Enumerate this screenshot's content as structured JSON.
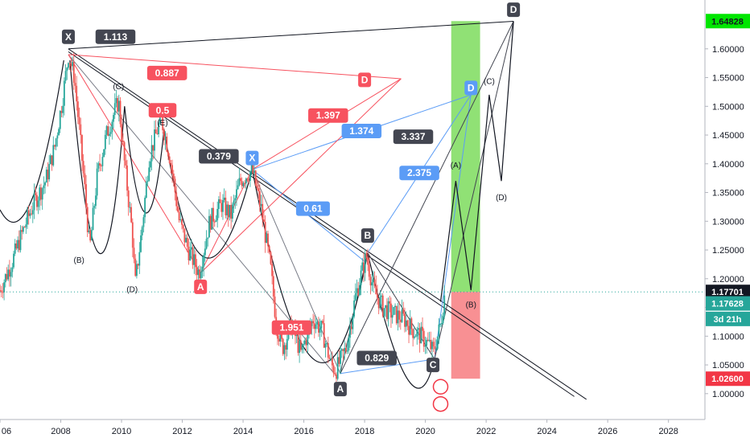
{
  "chart_data": {
    "type": "candlestick",
    "instrument_timeframe": "3d",
    "x_ticks": [
      "06",
      "2008",
      "2010",
      "2012",
      "2014",
      "2016",
      "2018",
      "2020",
      "2022",
      "2024",
      "2026",
      "2028"
    ],
    "y_ticks": [
      "1.00000",
      "1.05000",
      "1.10000",
      "1.15000",
      "1.20000",
      "1.25000",
      "1.30000",
      "1.35000",
      "1.40000",
      "1.45000",
      "1.50000",
      "1.55000",
      "1.60000"
    ],
    "ylim": [
      0.955,
      1.685
    ],
    "xlim": [
      2006.0,
      2029.2
    ],
    "price_tags": [
      {
        "value": "1.64828",
        "price": 1.64828,
        "bg": "#00e600",
        "fg": "#131722"
      },
      {
        "value": "1.17701",
        "price": 1.17701,
        "bg": "#131722",
        "fg": "#ffffff"
      },
      {
        "value": "1.17628",
        "price": 1.157,
        "bg": "#26a69a",
        "fg": "#ffffff"
      },
      {
        "value": "3d 21h",
        "price": 1.13,
        "bg": "#26a69a",
        "fg": "#ffffff"
      },
      {
        "value": "1.02600",
        "price": 1.026,
        "bg": "#f23645",
        "fg": "#ffffff"
      }
    ],
    "current_price": 1.17701,
    "price_path": [
      [
        2006.0,
        1.18
      ],
      [
        2006.4,
        1.23
      ],
      [
        2006.8,
        1.29
      ],
      [
        2007.1,
        1.33
      ],
      [
        2007.5,
        1.37
      ],
      [
        2007.8,
        1.43
      ],
      [
        2008.05,
        1.51
      ],
      [
        2008.25,
        1.59
      ],
      [
        2008.45,
        1.55
      ],
      [
        2008.8,
        1.35
      ],
      [
        2008.95,
        1.25
      ],
      [
        2009.2,
        1.38
      ],
      [
        2009.5,
        1.45
      ],
      [
        2009.9,
        1.51
      ],
      [
        2010.1,
        1.4
      ],
      [
        2010.35,
        1.28
      ],
      [
        2010.45,
        1.19
      ],
      [
        2010.7,
        1.3
      ],
      [
        2010.9,
        1.41
      ],
      [
        2011.3,
        1.48
      ],
      [
        2011.6,
        1.41
      ],
      [
        2011.9,
        1.3
      ],
      [
        2012.2,
        1.25
      ],
      [
        2012.55,
        1.21
      ],
      [
        2012.9,
        1.3
      ],
      [
        2013.3,
        1.33
      ],
      [
        2013.6,
        1.31
      ],
      [
        2013.9,
        1.37
      ],
      [
        2014.3,
        1.39
      ],
      [
        2014.6,
        1.32
      ],
      [
        2014.9,
        1.22
      ],
      [
        2015.1,
        1.12
      ],
      [
        2015.3,
        1.08
      ],
      [
        2015.6,
        1.12
      ],
      [
        2015.9,
        1.07
      ],
      [
        2016.3,
        1.13
      ],
      [
        2016.6,
        1.11
      ],
      [
        2016.9,
        1.05
      ],
      [
        2017.05,
        1.04
      ],
      [
        2017.4,
        1.08
      ],
      [
        2017.7,
        1.17
      ],
      [
        2018.05,
        1.24
      ],
      [
        2018.3,
        1.18
      ],
      [
        2018.6,
        1.15
      ],
      [
        2018.9,
        1.14
      ],
      [
        2019.3,
        1.13
      ],
      [
        2019.6,
        1.11
      ],
      [
        2019.85,
        1.1
      ],
      [
        2020.2,
        1.08
      ],
      [
        2020.25,
        1.07
      ],
      [
        2020.5,
        1.12
      ],
      [
        2020.65,
        1.18
      ]
    ],
    "harmonic_labels": [
      {
        "text": "1.113",
        "x": 2009.8,
        "y": 1.621,
        "color": "#434651"
      },
      {
        "text": "0.887",
        "x": 2011.5,
        "y": 1.558,
        "color": "#f7525f"
      },
      {
        "text": "1.397",
        "x": 2016.8,
        "y": 1.484,
        "color": "#f7525f"
      },
      {
        "text": "1.374",
        "x": 2017.9,
        "y": 1.457,
        "color": "#5b9cf6"
      },
      {
        "text": "0.5",
        "x": 2011.35,
        "y": 1.493,
        "color": "#f7525f"
      },
      {
        "text": "0.379",
        "x": 2013.2,
        "y": 1.413,
        "color": "#434651"
      },
      {
        "text": "3.337",
        "x": 2019.6,
        "y": 1.447,
        "color": "#434651"
      },
      {
        "text": "2.375",
        "x": 2019.8,
        "y": 1.384,
        "color": "#5b9cf6"
      },
      {
        "text": "0.61",
        "x": 2016.3,
        "y": 1.322,
        "color": "#5b9cf6"
      },
      {
        "text": "1.951",
        "x": 2015.6,
        "y": 1.115,
        "color": "#f7525f"
      },
      {
        "text": "0.829",
        "x": 2018.4,
        "y": 1.062,
        "color": "#434651"
      }
    ],
    "point_labels": [
      {
        "text": "X",
        "x": 2008.25,
        "y": 1.621,
        "color": "#434651"
      },
      {
        "text": "X",
        "x": 2014.3,
        "y": 1.41,
        "color": "#5b9cf6"
      },
      {
        "text": "D",
        "x": 2018.0,
        "y": 1.546,
        "color": "#f7525f"
      },
      {
        "text": "D",
        "x": 2021.5,
        "y": 1.532,
        "color": "#5b9cf6"
      },
      {
        "text": "D",
        "x": 2022.9,
        "y": 1.668,
        "color": "#434651"
      },
      {
        "text": "A",
        "x": 2012.6,
        "y": 1.186,
        "color": "#f7525f"
      },
      {
        "text": "B",
        "x": 2018.1,
        "y": 1.275,
        "color": "#434651"
      },
      {
        "text": "A",
        "x": 2017.2,
        "y": 1.008,
        "color": "#434651"
      },
      {
        "text": "C",
        "x": 2020.25,
        "y": 1.05,
        "color": "#434651"
      }
    ],
    "wave_labels": [
      {
        "text": "(C)",
        "x": 2009.9,
        "y": 1.53
      },
      {
        "text": "(E)",
        "x": 2011.35,
        "y": 1.467
      },
      {
        "text": "(B)",
        "x": 2008.6,
        "y": 1.228
      },
      {
        "text": "(D)",
        "x": 2010.35,
        "y": 1.177
      },
      {
        "text": "(A)",
        "x": 2021.0,
        "y": 1.393
      },
      {
        "text": "(C)",
        "x": 2022.1,
        "y": 1.539
      },
      {
        "text": "(B)",
        "x": 2021.5,
        "y": 1.15
      },
      {
        "text": "(D)",
        "x": 2022.5,
        "y": 1.337
      }
    ]
  }
}
